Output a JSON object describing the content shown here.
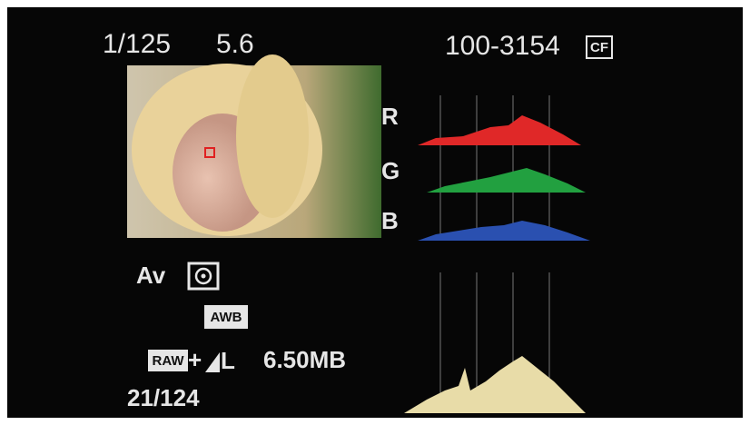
{
  "exposure": {
    "shutter": "1/125",
    "aperture": "5.6"
  },
  "file": {
    "number": "100-3154",
    "card": "CF"
  },
  "histogram": {
    "channels": [
      "R",
      "G",
      "B"
    ]
  },
  "settings": {
    "mode": "Av",
    "white_balance": "AWB",
    "quality_raw": "RAW",
    "quality_plus": "+",
    "quality_jpeg": "L",
    "file_size": "6.50MB",
    "image_count": "21/124"
  }
}
